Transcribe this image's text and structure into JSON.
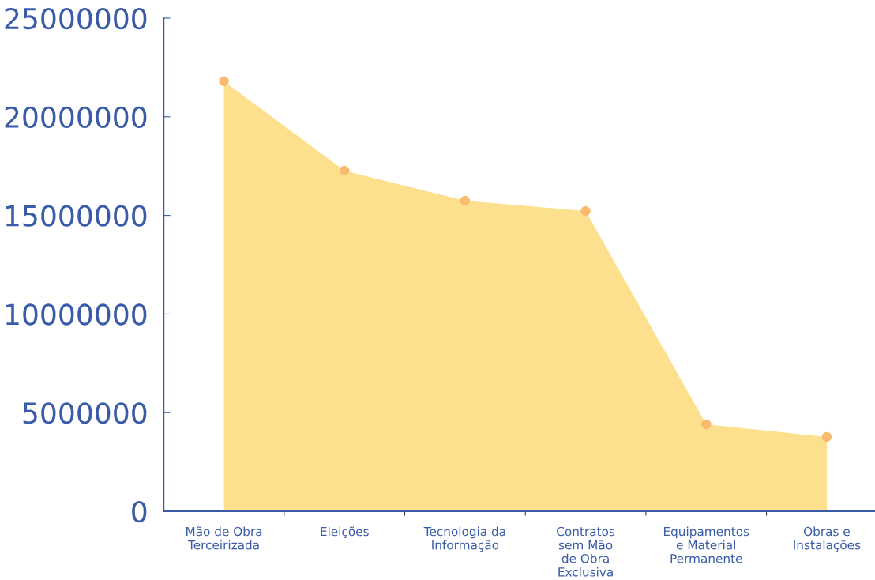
{
  "chart_data": {
    "type": "area",
    "categories": [
      "Mão de Obra\nTerceirizada",
      "Eleições",
      "Tecnologia da\nInformação",
      "Contratos\nsem Mão\nde Obra\nExclusiva",
      "Equipamentos\ne Material\nPermanente",
      "Obras e\nInstalações"
    ],
    "series": [
      {
        "color": "#fde08e",
        "values": [
          21800000,
          17270000,
          15740000,
          15220000,
          4410000,
          3770000
        ]
      }
    ],
    "marker": "circle",
    "ylim": [
      0,
      25000000
    ],
    "yticks": [
      0,
      5000000,
      10000000,
      15000000,
      20000000,
      25000000
    ],
    "grid": false,
    "legend": false
  }
}
